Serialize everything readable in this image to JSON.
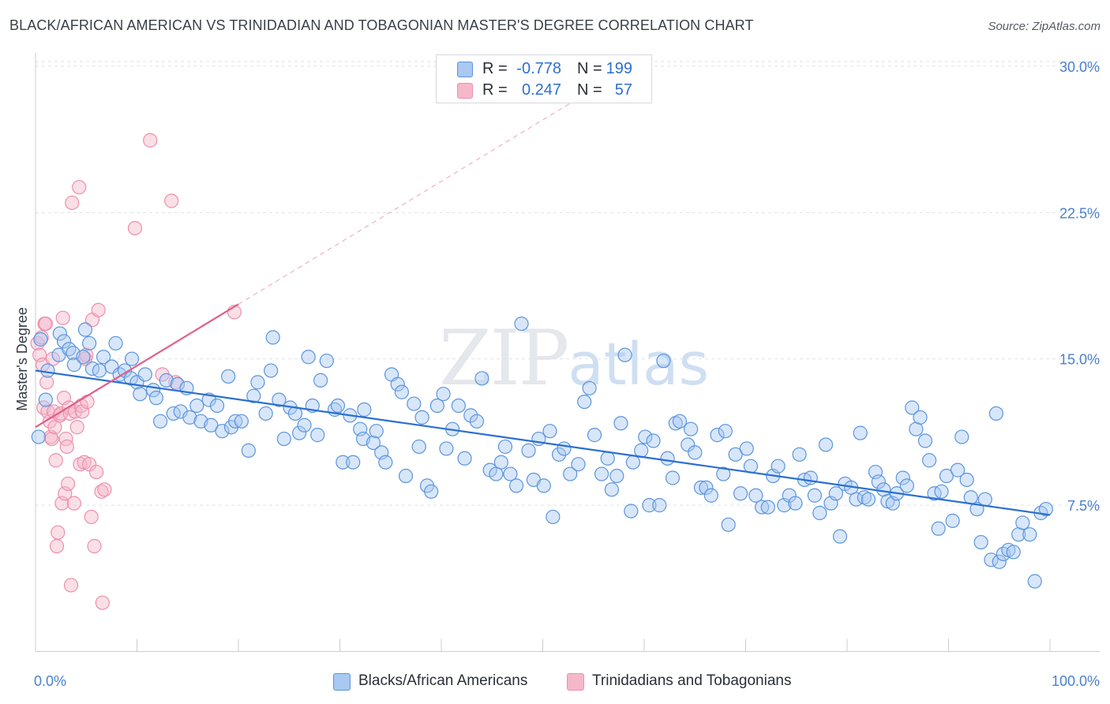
{
  "header": {
    "title": "BLACK/AFRICAN AMERICAN VS TRINIDADIAN AND TOBAGONIAN MASTER'S DEGREE CORRELATION CHART",
    "source": "Source: ZipAtlas.com"
  },
  "watermark": {
    "zip": "ZIP",
    "atlas": "atlas"
  },
  "legend": {
    "rows": [
      {
        "r_label": "R =",
        "r_value": "-0.778",
        "n_label": "N =",
        "n_value": "199",
        "color": "#a9c8f2"
      },
      {
        "r_label": "R =",
        "r_value": "0.247",
        "n_label": "N =",
        "n_value": "57",
        "color": "#f5b8ca"
      }
    ]
  },
  "bottom_legend": {
    "items": [
      {
        "label": "Blacks/African Americans",
        "color": "#a9c8f2"
      },
      {
        "label": "Trinidadians and Tobagonians",
        "color": "#f5b8ca"
      }
    ]
  },
  "colors": {
    "blue_stroke": "#5b95dd",
    "blue_line": "#2a6fd0",
    "pink_stroke": "#ee8fac",
    "pink_line": "#e05f8a",
    "tick_text": "#4a7fcf"
  },
  "chart_data": {
    "type": "scatter",
    "ylabel": "Master's Degree",
    "xlim": [
      0,
      100
    ],
    "ylim": [
      0,
      31
    ],
    "x_tick_labels": [
      "0.0%",
      "100.0%"
    ],
    "y_ticks": [
      7.5,
      15.0,
      22.5,
      30.0
    ],
    "y_tick_labels": [
      "7.5%",
      "15.0%",
      "22.5%",
      "30.0%"
    ],
    "grid": "horizontal dashed",
    "series": [
      {
        "name": "Blacks/African Americans",
        "trend": {
          "x0": 0,
          "y0": 14.4,
          "x1": 100,
          "y1": 7.0
        },
        "points": [
          [
            0.3,
            11.0
          ],
          [
            0.5,
            16.0
          ],
          [
            1.0,
            12.9
          ],
          [
            1.2,
            14.4
          ],
          [
            2.3,
            15.2
          ],
          [
            2.4,
            16.3
          ],
          [
            2.8,
            15.9
          ],
          [
            3.3,
            15.5
          ],
          [
            3.7,
            15.3
          ],
          [
            3.8,
            14.7
          ],
          [
            4.7,
            15.1
          ],
          [
            4.9,
            16.5
          ],
          [
            5.3,
            15.8
          ],
          [
            5.6,
            14.5
          ],
          [
            6.3,
            14.4
          ],
          [
            6.7,
            15.1
          ],
          [
            7.5,
            14.6
          ],
          [
            7.9,
            15.8
          ],
          [
            8.3,
            14.2
          ],
          [
            8.8,
            14.4
          ],
          [
            9.4,
            14.0
          ],
          [
            9.5,
            15.0
          ],
          [
            10.0,
            13.8
          ],
          [
            10.3,
            13.2
          ],
          [
            10.8,
            14.2
          ],
          [
            11.6,
            13.4
          ],
          [
            11.9,
            13.0
          ],
          [
            12.3,
            11.8
          ],
          [
            12.9,
            13.9
          ],
          [
            13.6,
            12.2
          ],
          [
            14.0,
            13.7
          ],
          [
            14.3,
            12.3
          ],
          [
            14.9,
            13.5
          ],
          [
            15.2,
            12.0
          ],
          [
            15.9,
            12.6
          ],
          [
            16.3,
            11.8
          ],
          [
            17.1,
            12.9
          ],
          [
            17.3,
            11.6
          ],
          [
            17.9,
            12.6
          ],
          [
            18.4,
            11.3
          ],
          [
            19.0,
            14.1
          ],
          [
            19.3,
            11.5
          ],
          [
            19.7,
            11.8
          ],
          [
            20.3,
            11.8
          ],
          [
            21.0,
            10.3
          ],
          [
            21.5,
            13.1
          ],
          [
            21.9,
            13.8
          ],
          [
            22.7,
            12.2
          ],
          [
            23.2,
            14.4
          ],
          [
            23.4,
            16.1
          ],
          [
            24.0,
            12.9
          ],
          [
            24.5,
            10.9
          ],
          [
            25.1,
            12.5
          ],
          [
            25.6,
            12.2
          ],
          [
            26.0,
            11.2
          ],
          [
            26.5,
            11.6
          ],
          [
            26.9,
            15.1
          ],
          [
            27.3,
            12.6
          ],
          [
            27.8,
            11.1
          ],
          [
            28.1,
            13.9
          ],
          [
            28.7,
            14.9
          ],
          [
            29.5,
            12.4
          ],
          [
            29.8,
            12.6
          ],
          [
            30.3,
            9.7
          ],
          [
            31.0,
            12.1
          ],
          [
            31.3,
            9.7
          ],
          [
            32.0,
            11.4
          ],
          [
            32.4,
            12.4
          ],
          [
            32.3,
            10.9
          ],
          [
            33.3,
            10.7
          ],
          [
            33.6,
            11.3
          ],
          [
            34.1,
            10.2
          ],
          [
            34.5,
            9.7
          ],
          [
            35.1,
            14.2
          ],
          [
            35.7,
            13.7
          ],
          [
            36.1,
            13.3
          ],
          [
            36.5,
            9.0
          ],
          [
            37.3,
            12.7
          ],
          [
            37.8,
            10.5
          ],
          [
            38.1,
            12.0
          ],
          [
            38.6,
            8.5
          ],
          [
            39.0,
            8.2
          ],
          [
            39.6,
            12.6
          ],
          [
            40.2,
            13.2
          ],
          [
            40.5,
            10.4
          ],
          [
            41.1,
            11.4
          ],
          [
            41.7,
            12.6
          ],
          [
            42.3,
            9.9
          ],
          [
            42.9,
            12.1
          ],
          [
            43.5,
            11.8
          ],
          [
            44.0,
            14.0
          ],
          [
            44.8,
            9.3
          ],
          [
            45.4,
            9.1
          ],
          [
            45.9,
            9.7
          ],
          [
            46.3,
            10.5
          ],
          [
            46.8,
            9.1
          ],
          [
            47.4,
            8.5
          ],
          [
            47.9,
            16.8
          ],
          [
            48.6,
            10.3
          ],
          [
            49.1,
            8.8
          ],
          [
            49.6,
            10.9
          ],
          [
            50.1,
            8.5
          ],
          [
            50.7,
            11.3
          ],
          [
            51.0,
            6.9
          ],
          [
            51.6,
            10.1
          ],
          [
            52.1,
            10.4
          ],
          [
            52.7,
            9.1
          ],
          [
            53.5,
            9.6
          ],
          [
            54.1,
            12.8
          ],
          [
            54.6,
            13.5
          ],
          [
            55.1,
            11.1
          ],
          [
            55.8,
            9.1
          ],
          [
            56.4,
            9.9
          ],
          [
            56.8,
            8.3
          ],
          [
            57.3,
            9.0
          ],
          [
            57.7,
            11.7
          ],
          [
            58.1,
            15.2
          ],
          [
            58.7,
            7.2
          ],
          [
            58.9,
            9.7
          ],
          [
            59.7,
            10.3
          ],
          [
            60.1,
            11.0
          ],
          [
            60.5,
            7.5
          ],
          [
            60.9,
            10.8
          ],
          [
            61.5,
            7.5
          ],
          [
            61.9,
            14.9
          ],
          [
            62.3,
            9.9
          ],
          [
            62.8,
            8.9
          ],
          [
            63.1,
            11.7
          ],
          [
            63.5,
            11.8
          ],
          [
            64.3,
            10.6
          ],
          [
            64.6,
            11.4
          ],
          [
            65.0,
            10.2
          ],
          [
            65.6,
            8.4
          ],
          [
            66.1,
            8.4
          ],
          [
            66.6,
            8.0
          ],
          [
            67.2,
            11.1
          ],
          [
            67.8,
            9.1
          ],
          [
            68.0,
            11.3
          ],
          [
            68.3,
            6.5
          ],
          [
            69.0,
            10.1
          ],
          [
            69.5,
            8.1
          ],
          [
            70.1,
            10.4
          ],
          [
            70.5,
            9.5
          ],
          [
            71.0,
            8.0
          ],
          [
            71.6,
            7.4
          ],
          [
            72.2,
            7.4
          ],
          [
            72.7,
            9.0
          ],
          [
            73.2,
            9.5
          ],
          [
            73.8,
            7.5
          ],
          [
            74.3,
            8.0
          ],
          [
            74.9,
            7.6
          ],
          [
            75.3,
            10.1
          ],
          [
            75.8,
            8.8
          ],
          [
            76.4,
            8.9
          ],
          [
            76.8,
            8.0
          ],
          [
            77.3,
            7.1
          ],
          [
            77.9,
            10.6
          ],
          [
            78.4,
            7.6
          ],
          [
            78.9,
            8.1
          ],
          [
            79.3,
            5.9
          ],
          [
            79.8,
            8.6
          ],
          [
            80.4,
            8.4
          ],
          [
            80.9,
            7.8
          ],
          [
            81.3,
            11.2
          ],
          [
            81.7,
            7.9
          ],
          [
            82.1,
            7.8
          ],
          [
            82.8,
            9.2
          ],
          [
            83.1,
            8.7
          ],
          [
            83.6,
            8.3
          ],
          [
            84.0,
            7.7
          ],
          [
            84.5,
            7.6
          ],
          [
            84.9,
            8.1
          ],
          [
            85.5,
            8.9
          ],
          [
            85.9,
            8.5
          ],
          [
            86.4,
            12.5
          ],
          [
            86.8,
            11.4
          ],
          [
            87.2,
            12.0
          ],
          [
            87.7,
            10.8
          ],
          [
            88.1,
            9.8
          ],
          [
            88.6,
            8.1
          ],
          [
            89.0,
            6.3
          ],
          [
            89.3,
            8.2
          ],
          [
            89.8,
            9.0
          ],
          [
            90.4,
            6.7
          ],
          [
            90.9,
            9.3
          ],
          [
            91.3,
            11.0
          ],
          [
            91.8,
            8.8
          ],
          [
            92.2,
            7.9
          ],
          [
            92.8,
            7.3
          ],
          [
            93.2,
            5.6
          ],
          [
            93.6,
            7.8
          ],
          [
            94.2,
            4.7
          ],
          [
            94.7,
            12.2
          ],
          [
            95.0,
            4.6
          ],
          [
            95.4,
            5.0
          ],
          [
            95.9,
            5.2
          ],
          [
            96.4,
            5.1
          ],
          [
            96.9,
            6.0
          ],
          [
            97.3,
            6.6
          ],
          [
            98.0,
            6.0
          ],
          [
            98.5,
            3.6
          ],
          [
            99.1,
            7.1
          ],
          [
            99.6,
            7.3
          ]
        ]
      },
      {
        "name": "Trinidadians and Tobagonians",
        "trend": {
          "x0": 0,
          "y0": 11.5,
          "x1": 20,
          "y1": 17.8
        },
        "points": [
          [
            0.2,
            15.8
          ],
          [
            0.4,
            15.2
          ],
          [
            0.6,
            16.1
          ],
          [
            0.7,
            14.7
          ],
          [
            0.8,
            12.5
          ],
          [
            0.9,
            16.8
          ],
          [
            1.0,
            16.8
          ],
          [
            1.1,
            13.8
          ],
          [
            1.2,
            12.3
          ],
          [
            1.4,
            11.8
          ],
          [
            1.5,
            11.0
          ],
          [
            1.6,
            10.9
          ],
          [
            1.7,
            15.0
          ],
          [
            1.8,
            12.3
          ],
          [
            1.9,
            11.5
          ],
          [
            2.0,
            9.8
          ],
          [
            2.1,
            5.4
          ],
          [
            2.2,
            6.1
          ],
          [
            2.4,
            12.1
          ],
          [
            2.5,
            12.2
          ],
          [
            2.6,
            7.6
          ],
          [
            2.7,
            17.1
          ],
          [
            2.8,
            13.0
          ],
          [
            2.9,
            8.1
          ],
          [
            3.0,
            10.9
          ],
          [
            3.1,
            10.5
          ],
          [
            3.2,
            8.6
          ],
          [
            3.3,
            12.5
          ],
          [
            3.4,
            12.2
          ],
          [
            3.5,
            3.4
          ],
          [
            3.6,
            23.0
          ],
          [
            3.8,
            7.6
          ],
          [
            3.9,
            12.3
          ],
          [
            4.1,
            11.5
          ],
          [
            4.3,
            23.8
          ],
          [
            4.4,
            9.6
          ],
          [
            4.5,
            12.6
          ],
          [
            4.6,
            12.3
          ],
          [
            4.8,
            9.7
          ],
          [
            4.9,
            15.0
          ],
          [
            5.0,
            15.2
          ],
          [
            5.1,
            12.8
          ],
          [
            5.3,
            9.6
          ],
          [
            5.5,
            6.9
          ],
          [
            5.6,
            17.0
          ],
          [
            5.8,
            5.4
          ],
          [
            6.0,
            9.2
          ],
          [
            6.2,
            17.5
          ],
          [
            6.5,
            8.2
          ],
          [
            6.6,
            2.5
          ],
          [
            6.8,
            8.3
          ],
          [
            9.8,
            21.7
          ],
          [
            11.3,
            26.2
          ],
          [
            12.5,
            14.2
          ],
          [
            13.4,
            23.1
          ],
          [
            13.8,
            13.8
          ],
          [
            19.6,
            17.4
          ]
        ]
      }
    ]
  }
}
